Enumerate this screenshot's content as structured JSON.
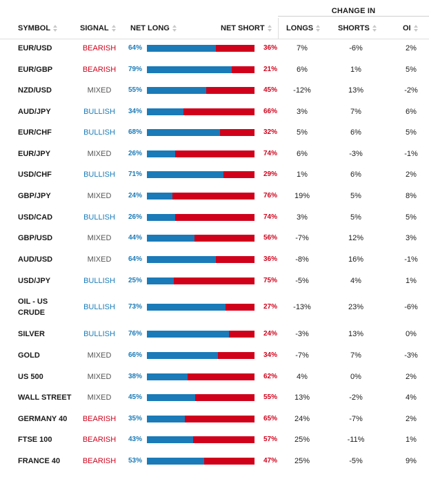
{
  "header": {
    "change_in": "CHANGE IN",
    "symbol": "SYMBOL",
    "signal": "SIGNAL",
    "net_long": "NET LONG",
    "net_short": "NET SHORT",
    "longs": "LONGS",
    "shorts": "SHORTS",
    "oi": "OI"
  },
  "colors": {
    "bullish": "#1a7bb8",
    "bearish": "#d0021b",
    "mixed": "#555555"
  },
  "rows": [
    {
      "symbol": "EUR/USD",
      "signal": "BEARISH",
      "net_long": "64%",
      "net_short": "36%",
      "long_pct": 64,
      "longs": "7%",
      "shorts": "-6%",
      "oi": "2%"
    },
    {
      "symbol": "EUR/GBP",
      "signal": "BEARISH",
      "net_long": "79%",
      "net_short": "21%",
      "long_pct": 79,
      "longs": "6%",
      "shorts": "1%",
      "oi": "5%"
    },
    {
      "symbol": "NZD/USD",
      "signal": "MIXED",
      "net_long": "55%",
      "net_short": "45%",
      "long_pct": 55,
      "longs": "-12%",
      "shorts": "13%",
      "oi": "-2%"
    },
    {
      "symbol": "AUD/JPY",
      "signal": "BULLISH",
      "net_long": "34%",
      "net_short": "66%",
      "long_pct": 34,
      "longs": "3%",
      "shorts": "7%",
      "oi": "6%"
    },
    {
      "symbol": "EUR/CHF",
      "signal": "BULLISH",
      "net_long": "68%",
      "net_short": "32%",
      "long_pct": 68,
      "longs": "5%",
      "shorts": "6%",
      "oi": "5%"
    },
    {
      "symbol": "EUR/JPY",
      "signal": "MIXED",
      "net_long": "26%",
      "net_short": "74%",
      "long_pct": 26,
      "longs": "6%",
      "shorts": "-3%",
      "oi": "-1%"
    },
    {
      "symbol": "USD/CHF",
      "signal": "BULLISH",
      "net_long": "71%",
      "net_short": "29%",
      "long_pct": 71,
      "longs": "1%",
      "shorts": "6%",
      "oi": "2%"
    },
    {
      "symbol": "GBP/JPY",
      "signal": "MIXED",
      "net_long": "24%",
      "net_short": "76%",
      "long_pct": 24,
      "longs": "19%",
      "shorts": "5%",
      "oi": "8%"
    },
    {
      "symbol": "USD/CAD",
      "signal": "BULLISH",
      "net_long": "26%",
      "net_short": "74%",
      "long_pct": 26,
      "longs": "3%",
      "shorts": "5%",
      "oi": "5%"
    },
    {
      "symbol": "GBP/USD",
      "signal": "MIXED",
      "net_long": "44%",
      "net_short": "56%",
      "long_pct": 44,
      "longs": "-7%",
      "shorts": "12%",
      "oi": "3%"
    },
    {
      "symbol": "AUD/USD",
      "signal": "MIXED",
      "net_long": "64%",
      "net_short": "36%",
      "long_pct": 64,
      "longs": "-8%",
      "shorts": "16%",
      "oi": "-1%"
    },
    {
      "symbol": "USD/JPY",
      "signal": "BULLISH",
      "net_long": "25%",
      "net_short": "75%",
      "long_pct": 25,
      "longs": "-5%",
      "shorts": "4%",
      "oi": "1%"
    },
    {
      "symbol": "OIL - US CRUDE",
      "symbol_lines": [
        "OIL - US",
        "CRUDE"
      ],
      "signal": "BULLISH",
      "net_long": "73%",
      "net_short": "27%",
      "long_pct": 73,
      "longs": "-13%",
      "shorts": "23%",
      "oi": "-6%"
    },
    {
      "symbol": "SILVER",
      "signal": "BULLISH",
      "net_long": "76%",
      "net_short": "24%",
      "long_pct": 76,
      "longs": "-3%",
      "shorts": "13%",
      "oi": "0%"
    },
    {
      "symbol": "GOLD",
      "signal": "MIXED",
      "net_long": "66%",
      "net_short": "34%",
      "long_pct": 66,
      "longs": "-7%",
      "shorts": "7%",
      "oi": "-3%"
    },
    {
      "symbol": "US 500",
      "signal": "MIXED",
      "net_long": "38%",
      "net_short": "62%",
      "long_pct": 38,
      "longs": "4%",
      "shorts": "0%",
      "oi": "2%"
    },
    {
      "symbol": "WALL STREET",
      "signal": "MIXED",
      "net_long": "45%",
      "net_short": "55%",
      "long_pct": 45,
      "longs": "13%",
      "shorts": "-2%",
      "oi": "4%"
    },
    {
      "symbol": "GERMANY 40",
      "signal": "BEARISH",
      "net_long": "35%",
      "net_short": "65%",
      "long_pct": 35,
      "longs": "24%",
      "shorts": "-7%",
      "oi": "2%"
    },
    {
      "symbol": "FTSE 100",
      "signal": "BEARISH",
      "net_long": "43%",
      "net_short": "57%",
      "long_pct": 43,
      "longs": "25%",
      "shorts": "-11%",
      "oi": "1%"
    },
    {
      "symbol": "FRANCE 40",
      "signal": "BEARISH",
      "net_long": "53%",
      "net_short": "47%",
      "long_pct": 53,
      "longs": "25%",
      "shorts": "-5%",
      "oi": "9%"
    }
  ]
}
